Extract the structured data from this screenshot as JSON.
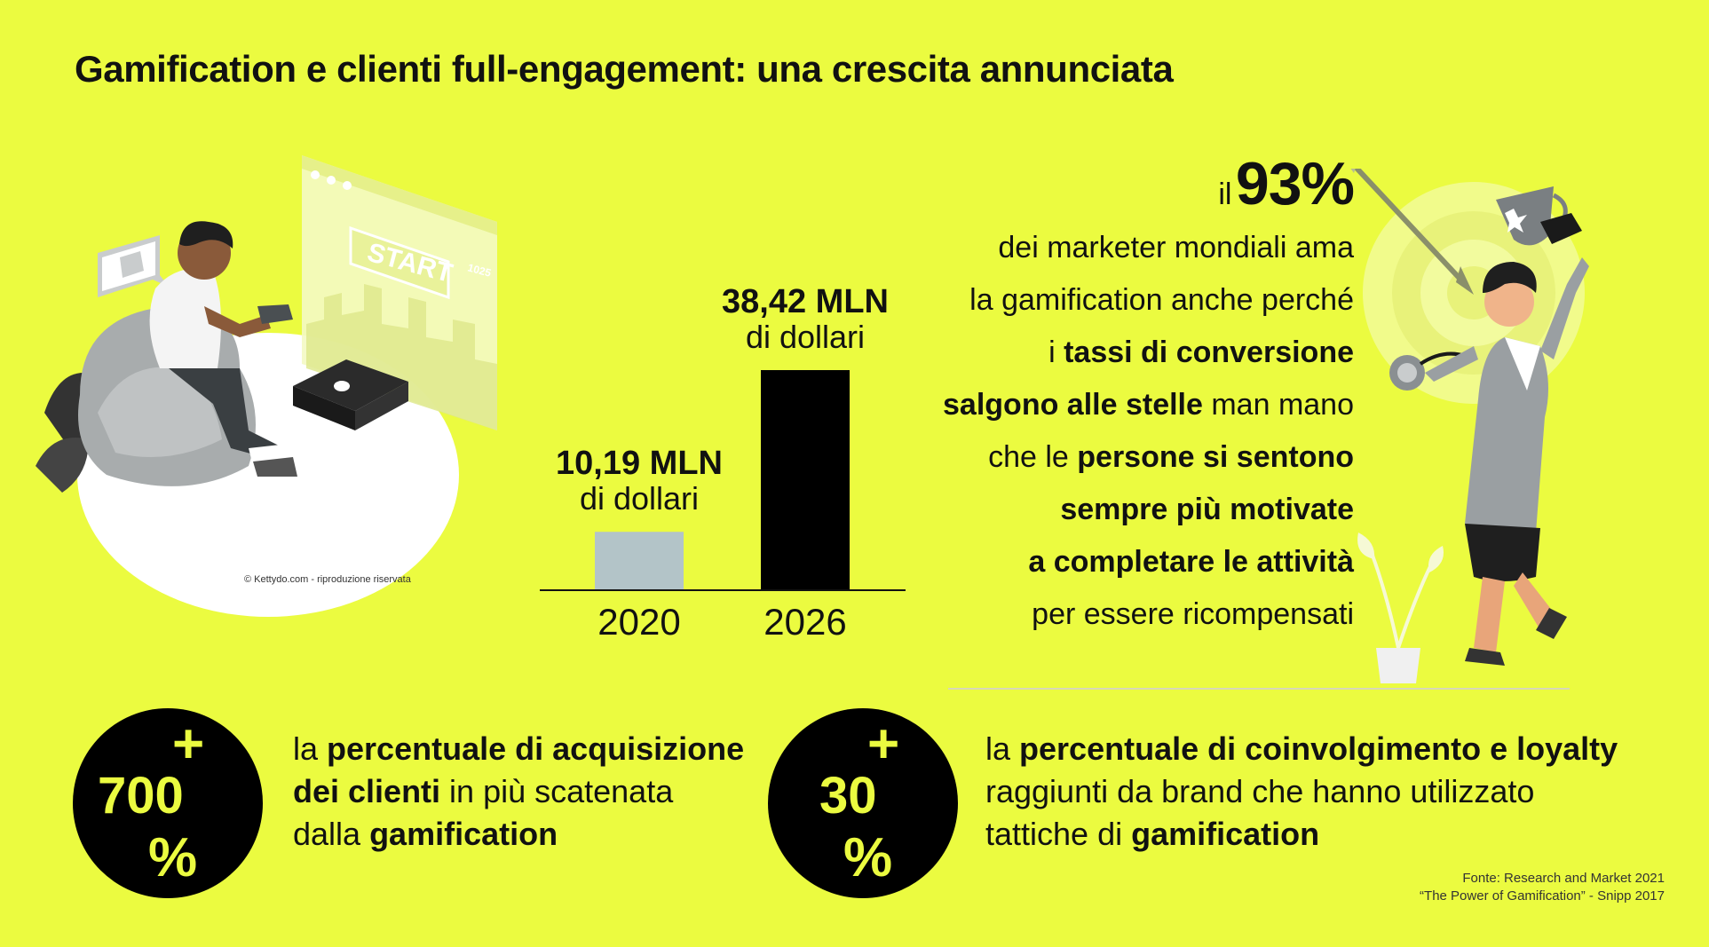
{
  "title": "Gamification e clienti full-engagement: una crescita annunciata",
  "colors": {
    "background": "#ebfb40",
    "bar_2020": "#b3c4c8",
    "bar_2026": "#000000",
    "circle": "#000000",
    "circle_text": "#ebfb40"
  },
  "chart_data": {
    "type": "bar",
    "categories": [
      "2020",
      "2026"
    ],
    "values": [
      10.19,
      38.42
    ],
    "unit": "MLN di dollari",
    "data_labels": [
      {
        "value": "10,19 MLN",
        "unit": "di dollari"
      },
      {
        "value": "38,42 MLN",
        "unit": "di dollari"
      }
    ],
    "title": "",
    "xlabel": "",
    "ylabel": "",
    "ylim": [
      0,
      38.42
    ],
    "grid": false
  },
  "marketers": {
    "il": "il",
    "percent": "93%",
    "lines": [
      {
        "pre": "",
        "bold": "",
        "post": "dei marketer mondiali ama"
      },
      {
        "pre": "",
        "bold": "",
        "post": "la gamification anche perché"
      },
      {
        "pre": "i ",
        "bold": "tassi di conversione",
        "post": ""
      },
      {
        "pre": "",
        "bold": "salgono alle stelle",
        "post": " man mano"
      },
      {
        "pre": "che le ",
        "bold": "persone si sentono",
        "post": ""
      },
      {
        "pre": "",
        "bold": "sempre più motivate",
        "post": ""
      },
      {
        "pre": "",
        "bold": "a completare le attività",
        "post": ""
      },
      {
        "pre": "",
        "bold": "",
        "post": "per essere ricompensati"
      }
    ]
  },
  "stats": [
    {
      "plus": "+",
      "number": "700",
      "percent": "%",
      "lines": [
        {
          "pre": "la ",
          "bold": "percentuale di acquisizione",
          "post": ""
        },
        {
          "pre": "",
          "bold": "dei clienti",
          "post": " in più scatenata"
        },
        {
          "pre": "dalla ",
          "bold": "gamification",
          "post": ""
        }
      ]
    },
    {
      "plus": "+",
      "number": "30",
      "percent": "%",
      "lines": [
        {
          "pre": "la ",
          "bold": "percentuale di coinvolgimento e loyalty",
          "post": ""
        },
        {
          "pre": "",
          "bold": "",
          "post": "raggiunti da brand che hanno utilizzato"
        },
        {
          "pre": "tattiche di ",
          "bold": "gamification",
          "post": ""
        }
      ]
    }
  ],
  "illustration": {
    "screen_button": "START",
    "screen_number": "1025",
    "credit": "© Kettydo.com - riproduzione riservata"
  },
  "source": {
    "line1": "Fonte: Research and Market 2021",
    "line2": "“The Power of Gamification” - Snipp 2017"
  }
}
